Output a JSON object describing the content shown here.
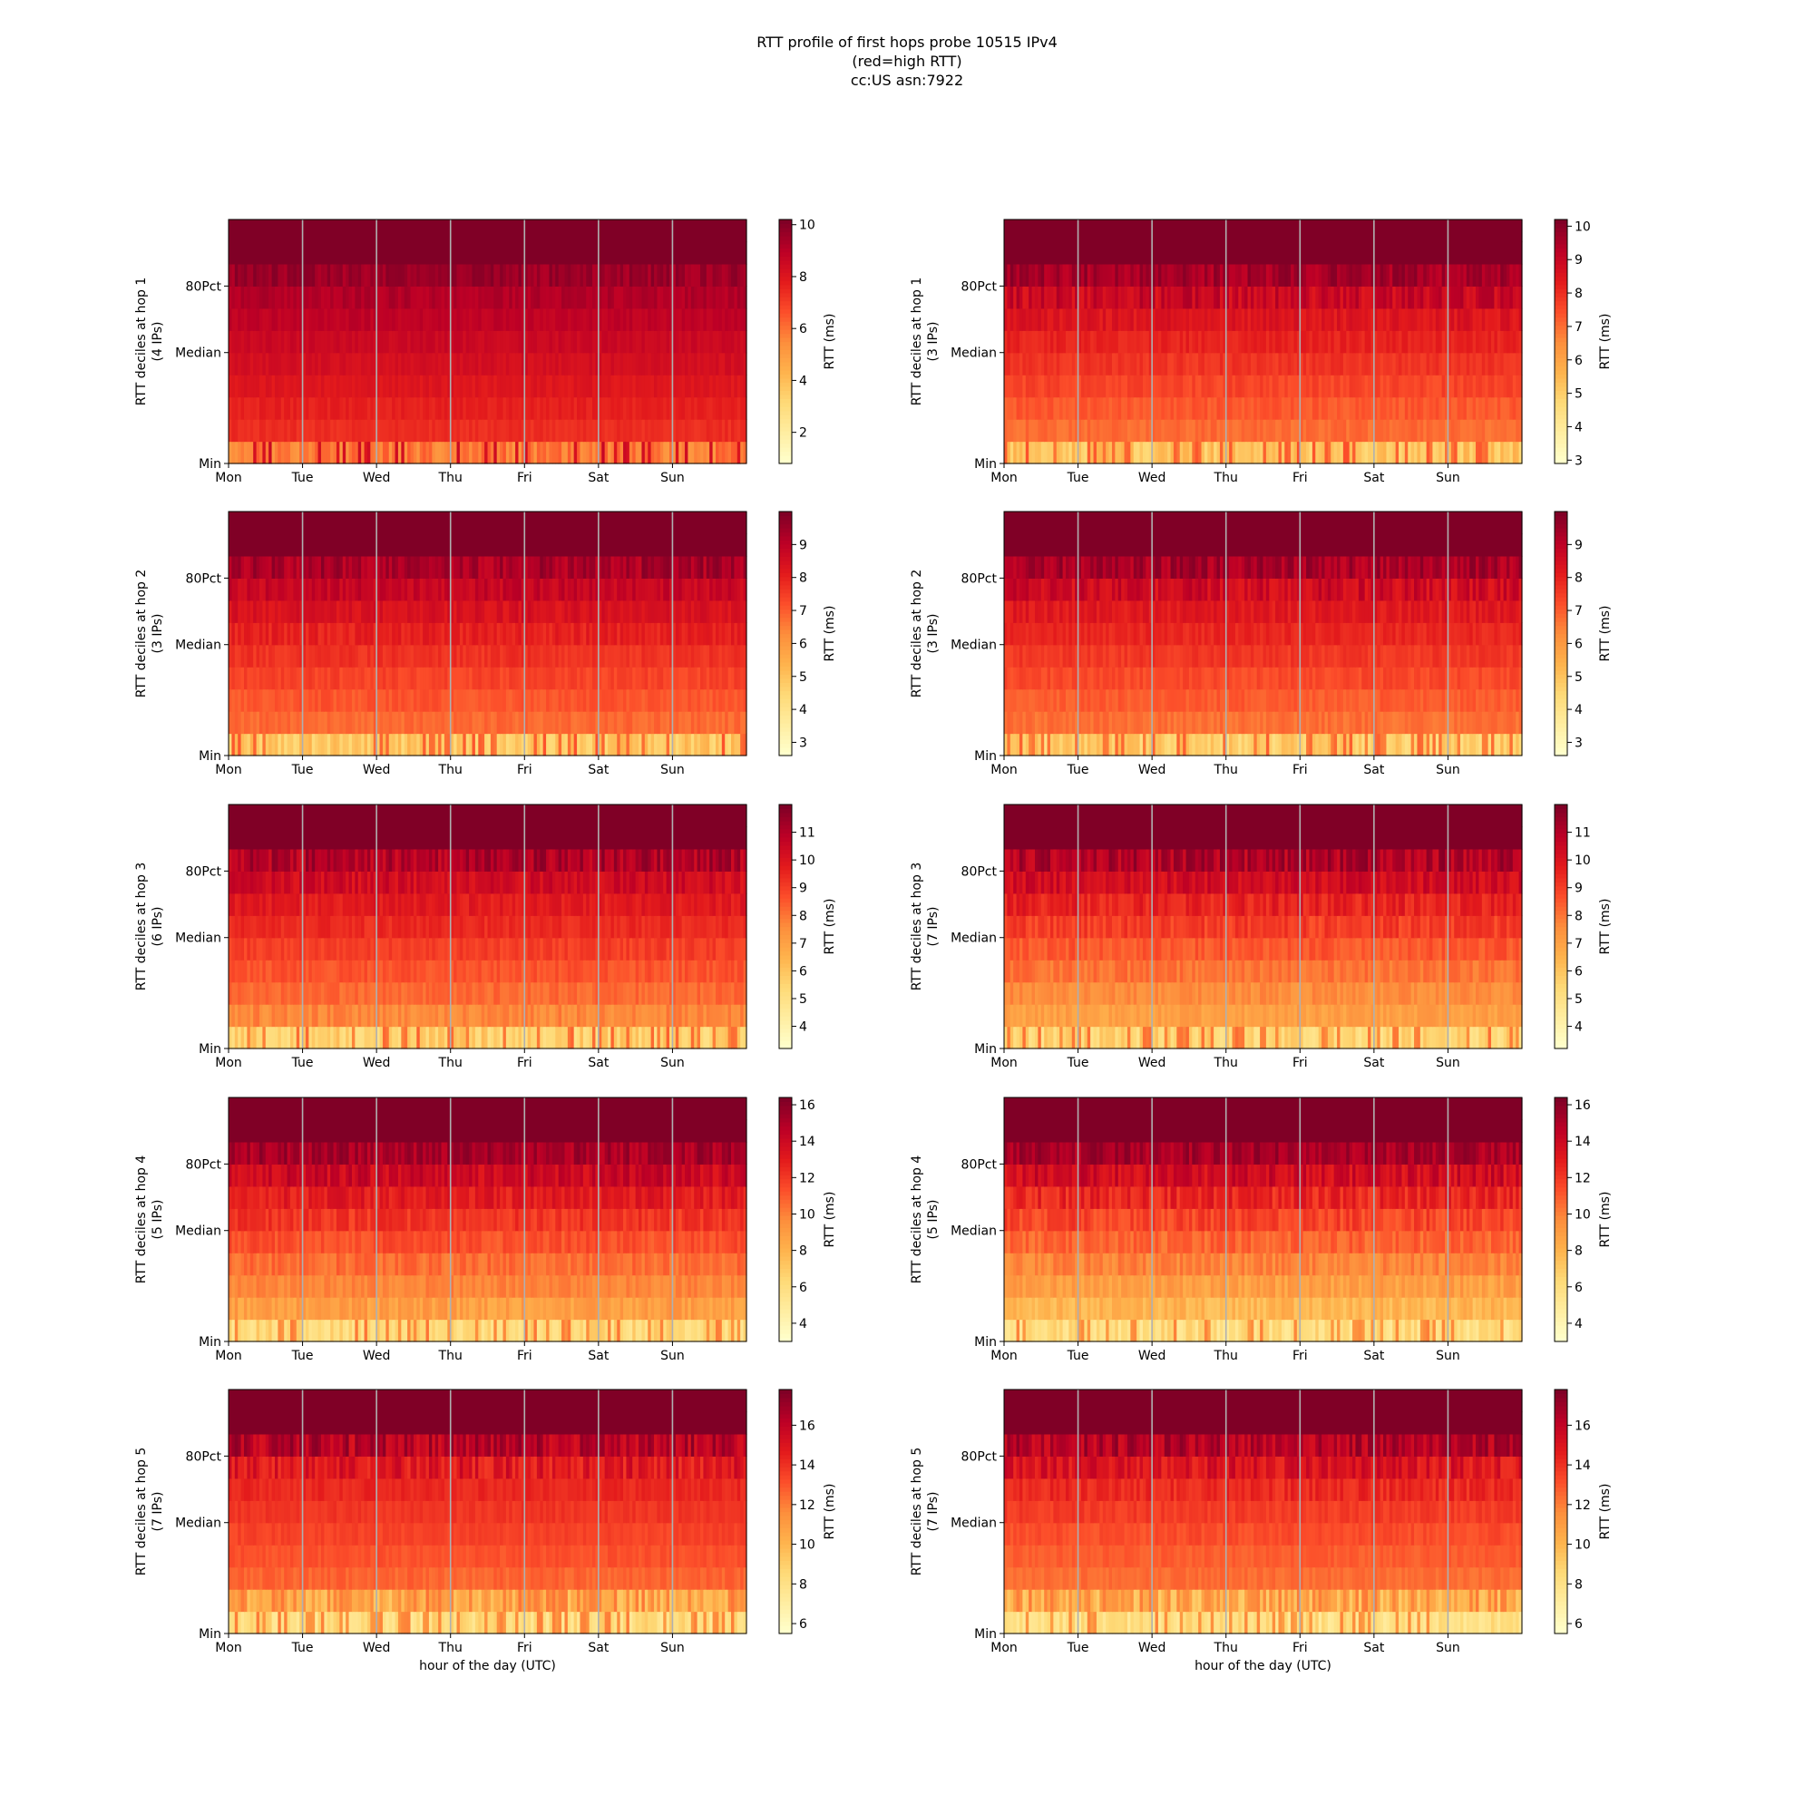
{
  "title_lines": [
    "RTT profile of first hops probe 10515 IPv4",
    "(red=high RTT)",
    "cc:US asn:7922"
  ],
  "x_label": "hour of the day (UTC)",
  "day_labels": [
    "Mon",
    "Tue",
    "Wed",
    "Thu",
    "Fri",
    "Sat",
    "Sun"
  ],
  "y_tick_labels": [
    "Min",
    "Median",
    "80Pct"
  ],
  "colorbar_label": "RTT (ms)",
  "colormap": [
    "#ffffcc",
    "#ffeda0",
    "#fed976",
    "#feb24c",
    "#fd8d3c",
    "#fc4e2a",
    "#e31a1c",
    "#bd0026",
    "#800026"
  ],
  "chart_data": [
    {
      "type": "heatmap",
      "column": "left",
      "hop": 1,
      "ylabel": "RTT deciles at hop 1",
      "ylabel_sub": "(4 IPs)",
      "vmin": 0.8,
      "vmax": 10.2,
      "colorbar_ticks": [
        2,
        4,
        6,
        8,
        10
      ],
      "deciles": [
        6.2,
        7.4,
        7.7,
        8.0,
        8.3,
        8.6,
        8.9,
        9.2,
        9.6,
        10.2
      ]
    },
    {
      "type": "heatmap",
      "column": "right",
      "hop": 1,
      "ylabel": "RTT deciles at hop 1",
      "ylabel_sub": "(3 IPs)",
      "vmin": 2.9,
      "vmax": 10.2,
      "colorbar_ticks": [
        3,
        4,
        5,
        6,
        7,
        8,
        9,
        10
      ],
      "deciles": [
        5.5,
        7.0,
        7.3,
        7.6,
        7.9,
        8.2,
        8.5,
        8.9,
        9.6,
        10.2
      ]
    },
    {
      "type": "heatmap",
      "column": "left",
      "hop": 2,
      "ylabel": "RTT deciles at hop 2",
      "ylabel_sub": "(3 IPs)",
      "vmin": 2.6,
      "vmax": 10.0,
      "colorbar_ticks": [
        3,
        4,
        5,
        6,
        7,
        8,
        9
      ],
      "deciles": [
        5.2,
        6.8,
        7.1,
        7.4,
        7.7,
        8.0,
        8.4,
        8.8,
        9.3,
        10.0
      ]
    },
    {
      "type": "heatmap",
      "column": "right",
      "hop": 2,
      "ylabel": "RTT deciles at hop 2",
      "ylabel_sub": "(3 IPs)",
      "vmin": 2.6,
      "vmax": 10.0,
      "colorbar_ticks": [
        3,
        4,
        5,
        6,
        7,
        8,
        9
      ],
      "deciles": [
        5.0,
        6.7,
        7.0,
        7.3,
        7.6,
        7.9,
        8.2,
        8.6,
        9.3,
        10.0
      ]
    },
    {
      "type": "heatmap",
      "column": "left",
      "hop": 3,
      "ylabel": "RTT deciles at hop 3",
      "ylabel_sub": "(6 IPs)",
      "vmin": 3.2,
      "vmax": 12.0,
      "colorbar_ticks": [
        4,
        5,
        6,
        7,
        8,
        9,
        10,
        11
      ],
      "deciles": [
        6.0,
        7.6,
        8.2,
        8.6,
        9.0,
        9.4,
        9.8,
        10.3,
        11.0,
        12.0
      ]
    },
    {
      "type": "heatmap",
      "column": "right",
      "hop": 3,
      "ylabel": "RTT deciles at hop 3",
      "ylabel_sub": "(7 IPs)",
      "vmin": 3.2,
      "vmax": 12.0,
      "colorbar_ticks": [
        4,
        5,
        6,
        7,
        8,
        9,
        10,
        11
      ],
      "deciles": [
        5.8,
        7.0,
        7.5,
        8.0,
        8.5,
        9.0,
        9.6,
        10.3,
        11.0,
        12.0
      ]
    },
    {
      "type": "heatmap",
      "column": "left",
      "hop": 4,
      "ylabel": "RTT deciles at hop 4",
      "ylabel_sub": "(5 IPs)",
      "vmin": 3.0,
      "vmax": 16.4,
      "colorbar_ticks": [
        4,
        6,
        8,
        10,
        12,
        14,
        16
      ],
      "deciles": [
        6.8,
        8.8,
        9.8,
        10.5,
        11.3,
        12.1,
        13.0,
        14.0,
        15.2,
        16.4
      ]
    },
    {
      "type": "heatmap",
      "column": "right",
      "hop": 4,
      "ylabel": "RTT deciles at hop 4",
      "ylabel_sub": "(5 IPs)",
      "vmin": 3.0,
      "vmax": 16.4,
      "colorbar_ticks": [
        4,
        6,
        8,
        10,
        12,
        14,
        16
      ],
      "deciles": [
        6.5,
        7.8,
        8.8,
        9.8,
        10.7,
        11.6,
        12.6,
        13.8,
        15.2,
        16.4
      ]
    },
    {
      "type": "heatmap",
      "column": "left",
      "hop": 5,
      "ylabel": "RTT deciles at hop 5",
      "ylabel_sub": "(7 IPs)",
      "vmin": 5.5,
      "vmax": 17.8,
      "colorbar_ticks": [
        6,
        8,
        10,
        12,
        14,
        16
      ],
      "deciles": [
        8.8,
        10.6,
        12.6,
        13.1,
        13.5,
        13.9,
        14.3,
        14.8,
        16.2,
        17.8
      ]
    },
    {
      "type": "heatmap",
      "column": "right",
      "hop": 5,
      "ylabel": "RTT deciles at hop 5",
      "ylabel_sub": "(7 IPs)",
      "vmin": 5.5,
      "vmax": 17.8,
      "colorbar_ticks": [
        6,
        8,
        10,
        12,
        14,
        16
      ],
      "deciles": [
        8.6,
        10.4,
        12.4,
        12.8,
        13.2,
        13.7,
        14.2,
        15.0,
        16.3,
        17.8
      ]
    }
  ]
}
